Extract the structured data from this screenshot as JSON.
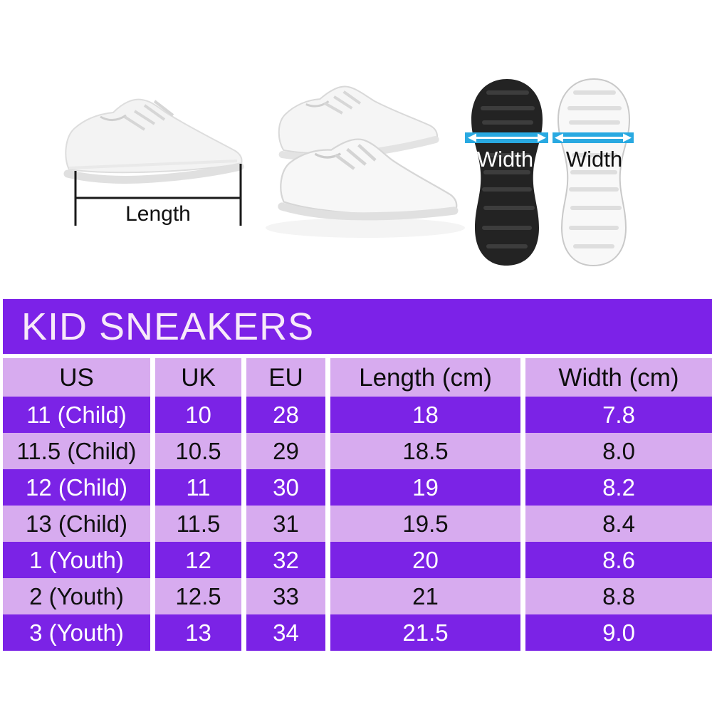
{
  "banner": {
    "title": "KID SNEAKERS"
  },
  "photo_labels": {
    "length": "Length",
    "width_left": "Width",
    "width_right": "Width"
  },
  "chart_data": {
    "type": "table",
    "title": "KID SNEAKERS",
    "columns": [
      "US",
      "UK",
      "EU",
      "Length (cm)",
      "Width (cm)"
    ],
    "rows": [
      [
        "11 (Child)",
        "10",
        "28",
        "18",
        "7.8"
      ],
      [
        "11.5 (Child)",
        "10.5",
        "29",
        "18.5",
        "8.0"
      ],
      [
        "12 (Child)",
        "11",
        "30",
        "19",
        "8.2"
      ],
      [
        "13 (Child)",
        "11.5",
        "31",
        "19.5",
        "8.4"
      ],
      [
        "1 (Youth)",
        "12",
        "32",
        "20",
        "8.6"
      ],
      [
        "2 (Youth)",
        "12.5",
        "33",
        "21",
        "8.8"
      ],
      [
        "3 (Youth)",
        "13",
        "34",
        "21.5",
        "9.0"
      ]
    ]
  },
  "colors": {
    "banner_purple": "#7c22e8",
    "row_purple": "#7b23e6",
    "lavender": "#d7abef",
    "title_text": "#f7e9f9",
    "band_blue": "#29a9e1",
    "bracket_black": "#1a1a1a"
  }
}
